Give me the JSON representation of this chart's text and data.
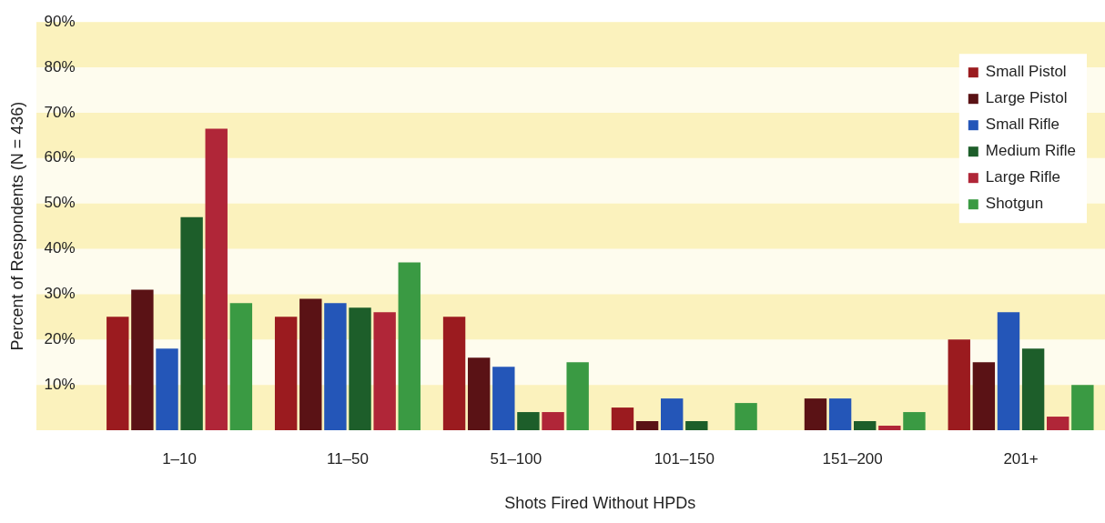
{
  "chart_data": {
    "type": "bar",
    "xlabel": "Shots Fired Without HPDs",
    "ylabel": "Percent of Respondents (N = 436)",
    "categories": [
      "1–10",
      "11–50",
      "51–100",
      "101–150",
      "151–200",
      "201+"
    ],
    "series": [
      {
        "name": "Small Pistol",
        "color": "#9b1b1f",
        "values": [
          25,
          25,
          25,
          5,
          0,
          20
        ]
      },
      {
        "name": "Large Pistol",
        "color": "#5a1215",
        "values": [
          31,
          29,
          16,
          2,
          7,
          15
        ]
      },
      {
        "name": "Small Rifle",
        "color": "#2456b8",
        "values": [
          18,
          28,
          14,
          7,
          7,
          26
        ]
      },
      {
        "name": "Medium Rifle",
        "color": "#1d5e2a",
        "values": [
          47,
          27,
          4,
          2,
          2,
          18
        ]
      },
      {
        "name": "Large Rifle",
        "color": "#b02638",
        "values": [
          66.5,
          26,
          4,
          0,
          1,
          3
        ]
      },
      {
        "name": "Shotgun",
        "color": "#3a9a43",
        "values": [
          28,
          37,
          15,
          6,
          4,
          10
        ]
      }
    ],
    "ylim": [
      0,
      90
    ],
    "yticks": [
      {
        "value": 10,
        "label": "10%"
      },
      {
        "value": 20,
        "label": "20%"
      },
      {
        "value": 30,
        "label": "30%"
      },
      {
        "value": 40,
        "label": "40%"
      },
      {
        "value": 50,
        "label": "50%"
      },
      {
        "value": 60,
        "label": "60%"
      },
      {
        "value": 70,
        "label": "70%"
      },
      {
        "value": 80,
        "label": "80%"
      },
      {
        "value": 90,
        "label": "90%"
      }
    ],
    "bands": [
      {
        "axis": "y",
        "from": 0,
        "to": 10,
        "color": "#fbf2bd"
      },
      {
        "axis": "y",
        "from": 20,
        "to": 30,
        "color": "#fbf2bd"
      },
      {
        "axis": "y",
        "from": 40,
        "to": 50,
        "color": "#fbf2bd"
      },
      {
        "axis": "y",
        "from": 60,
        "to": 70,
        "color": "#fbf2bd"
      },
      {
        "axis": "y",
        "from": 80,
        "to": 90,
        "color": "#fbf2bd"
      }
    ],
    "legend": "top right"
  }
}
